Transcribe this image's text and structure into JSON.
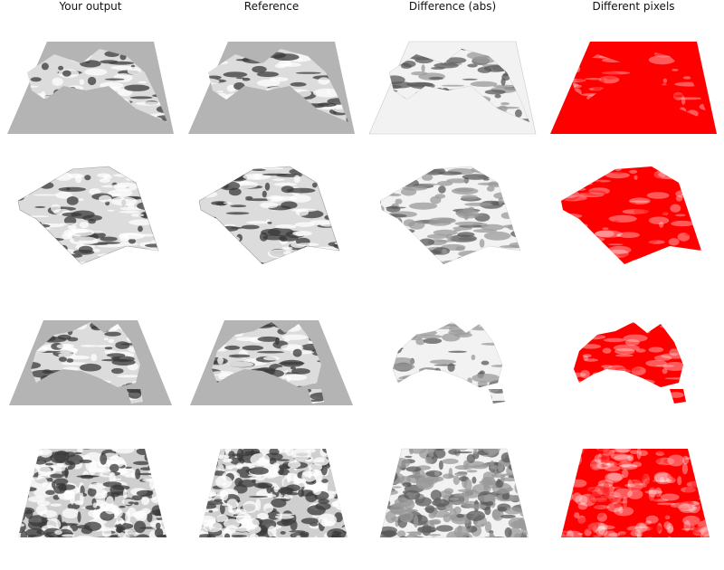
{
  "columns": [
    {
      "id": "output",
      "title": "Your output"
    },
    {
      "id": "reference",
      "title": "Reference"
    },
    {
      "id": "diff",
      "title": "Difference (abs)"
    },
    {
      "id": "pixels",
      "title": "Different pixels"
    }
  ],
  "rows": [
    {
      "id": "mountain-terrain"
    },
    {
      "id": "hill-terrain"
    },
    {
      "id": "australia-map"
    },
    {
      "id": "stone-texture"
    }
  ],
  "colors": {
    "base_gray": "#b4b4b4",
    "surface_light": "#dcdcdc",
    "highlight": "#ffffff",
    "shadow": "#3a3a3a",
    "diff_light": "#f2f2f2",
    "mismatch_red": "#ff0000"
  }
}
